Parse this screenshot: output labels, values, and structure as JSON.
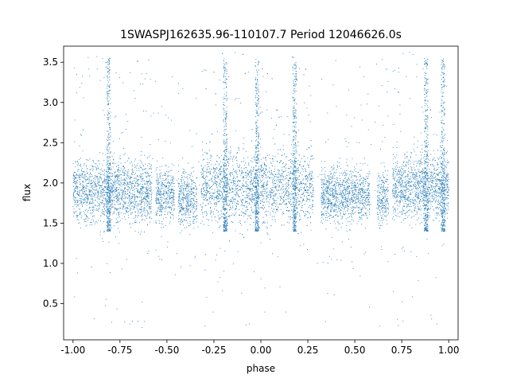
{
  "chart_data": {
    "type": "scatter",
    "title": "1SWASPJ162635.96-110107.7 Period 12046626.0s",
    "xlabel": "phase",
    "ylabel": "flux",
    "xlim": [
      -1.05,
      1.05
    ],
    "ylim": [
      0.05,
      3.7
    ],
    "x_ticks": [
      "-1.00",
      "-0.75",
      "-0.50",
      "-0.25",
      "0.00",
      "0.25",
      "0.50",
      "0.75",
      "1.00"
    ],
    "x_tick_values": [
      -1.0,
      -0.75,
      -0.5,
      -0.25,
      0.0,
      0.25,
      0.5,
      0.75,
      1.0
    ],
    "y_ticks": [
      "0.5",
      "1.0",
      "1.5",
      "2.0",
      "2.5",
      "3.0",
      "3.5"
    ],
    "y_tick_values": [
      0.5,
      1.0,
      1.5,
      2.0,
      2.5,
      3.0,
      3.5
    ],
    "grid": false,
    "legend": "none",
    "marker_color": "#1f77b4",
    "series": [
      {
        "values_summary": "dense light curve, flux mostly 1.4-2.4 centered near 1.9, phase -1 to 1, gaps near -0.68, -0.45, -0.3, 0.3, 0.6, 0.72",
        "clusters": [
          {
            "range": [
              -1.0,
              -0.58
            ],
            "center": 1.9,
            "spread": 0.35
          },
          {
            "range": [
              -0.56,
              -0.46
            ],
            "center": 1.85,
            "spread": 0.3
          },
          {
            "range": [
              -0.44,
              -0.34
            ],
            "center": 1.8,
            "spread": 0.3
          },
          {
            "range": [
              -0.32,
              0.28
            ],
            "center": 1.95,
            "spread": 0.4
          },
          {
            "range": [
              0.32,
              0.58
            ],
            "center": 1.85,
            "spread": 0.3
          },
          {
            "range": [
              0.62,
              0.68
            ],
            "center": 1.8,
            "spread": 0.3
          },
          {
            "range": [
              0.7,
              1.0
            ],
            "center": 1.95,
            "spread": 0.35
          }
        ],
        "spikes": [
          {
            "x": -0.81,
            "ymax": 3.55
          },
          {
            "x": -0.19,
            "ymax": 3.55
          },
          {
            "x": -0.02,
            "ymax": 3.55
          },
          {
            "x": 0.18,
            "ymax": 3.5
          },
          {
            "x": 0.88,
            "ymax": 3.55
          },
          {
            "x": 0.97,
            "ymax": 3.55
          }
        ]
      }
    ]
  }
}
